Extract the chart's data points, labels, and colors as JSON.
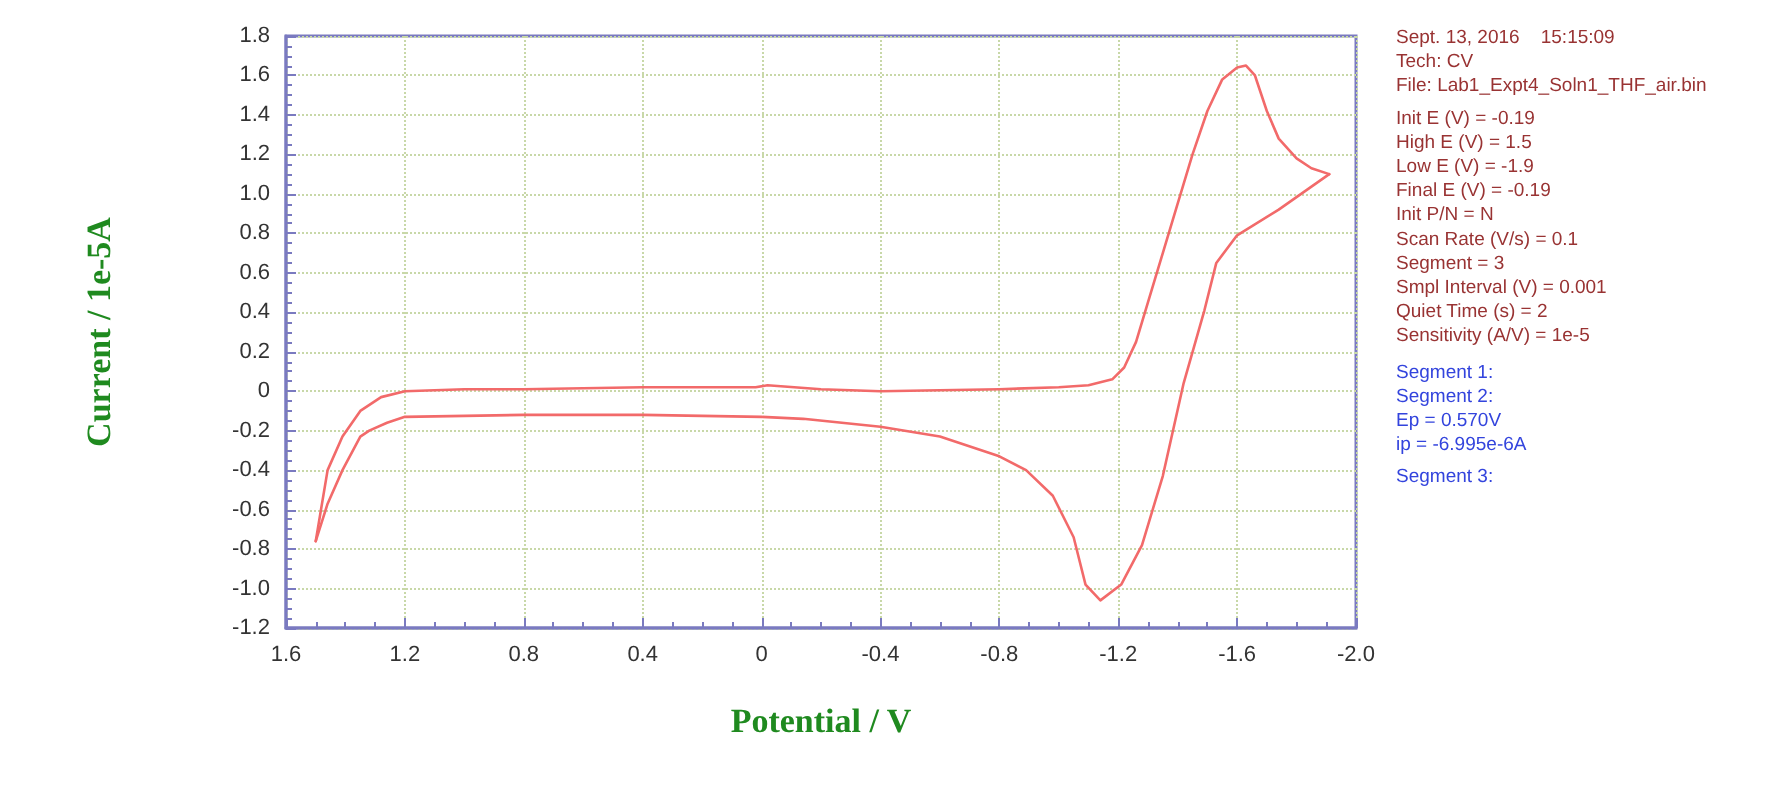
{
  "chart_data": {
    "type": "line",
    "xlabel": "Potential / V",
    "ylabel": "Current / 1e-5A",
    "xlim": [
      1.6,
      -2.0
    ],
    "xticks": [
      1.6,
      1.2,
      0.8,
      0.4,
      0,
      -0.4,
      -0.8,
      -1.2,
      -1.6,
      {
        "value": -2,
        "label": "-2.0"
      }
    ],
    "ylim": [
      -1.2,
      1.8
    ],
    "yticks": [
      -1.2,
      {
        "value": -1,
        "label": "-1.0"
      },
      -0.8,
      -0.6,
      -0.4,
      -0.2,
      0,
      0.2,
      0.4,
      0.6,
      0.8,
      {
        "value": 1,
        "label": "1.0"
      },
      1.2,
      1.4,
      1.6,
      1.8
    ],
    "grid": true,
    "marker": "none",
    "line_style": "solid",
    "series": [
      {
        "color": "#f26a6a",
        "x": [
          1.5,
          1.46,
          1.41,
          1.35,
          1.28,
          1.2,
          1.0,
          0.8,
          0.4,
          0.02,
          -0.02,
          -0.2,
          -0.4,
          -0.8,
          -1.0,
          -1.1,
          -1.18,
          -1.22,
          -1.26,
          -1.3,
          -1.35,
          -1.4,
          -1.45,
          -1.5,
          -1.55,
          -1.6,
          -1.63,
          -1.66,
          -1.7,
          -1.74,
          -1.8,
          -1.85,
          -1.91
        ],
        "values": [
          -0.76,
          -0.4,
          -0.23,
          -0.1,
          -0.03,
          0.0,
          0.01,
          0.01,
          0.02,
          0.02,
          0.03,
          0.01,
          0.0,
          0.01,
          0.02,
          0.03,
          0.06,
          0.12,
          0.25,
          0.45,
          0.7,
          0.95,
          1.2,
          1.42,
          1.58,
          1.64,
          1.65,
          1.6,
          1.42,
          1.28,
          1.18,
          1.13,
          1.1
        ]
      },
      {
        "color": "#f26a6a",
        "x": [
          -1.91,
          -1.74,
          -1.6,
          -1.53,
          -1.49,
          -1.42,
          -1.35,
          -1.28,
          -1.21,
          -1.14,
          -1.09,
          -1.05,
          -0.98,
          -0.89,
          -0.8,
          -0.6,
          -0.4,
          -0.14,
          0,
          0.4,
          0.8,
          1.2,
          1.26,
          1.32,
          1.35,
          1.41,
          1.46,
          1.5
        ],
        "values": [
          1.1,
          0.92,
          0.79,
          0.65,
          0.41,
          0.04,
          -0.43,
          -0.78,
          -0.98,
          -1.06,
          -0.98,
          -0.74,
          -0.53,
          -0.4,
          -0.33,
          -0.23,
          -0.18,
          -0.14,
          -0.13,
          -0.12,
          -0.12,
          -0.13,
          -0.16,
          -0.2,
          -0.23,
          -0.4,
          -0.57,
          -0.76
        ]
      }
    ],
    "annotations": [
      "Sept. 13, 2016    15:15:09",
      "Tech: CV",
      "File: Lab1_Expt4_Soln1_THF_air.bin",
      "Init E (V) = -0.19",
      "High E (V) = 1.5",
      "Low E (V) = -1.9",
      "Final E (V) = -0.19",
      "Init P/N = N",
      "Scan Rate (V/s) = 0.1",
      "Segment = 3",
      "Smpl Interval (V) = 0.001",
      "Quiet Time (s) = 2",
      "Sensitivity (A/V) = 1e-5",
      "Segment 1:",
      "Segment 2:",
      "Ep = 0.570V",
      "ip = -6.995e-6A",
      "Segment 3:"
    ]
  }
}
